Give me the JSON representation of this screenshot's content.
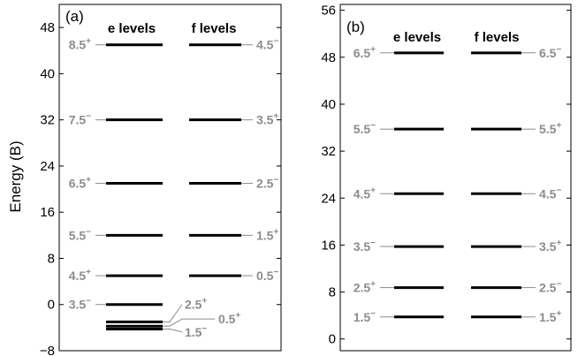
{
  "y_axis_label": "Energy (B)",
  "colors": {
    "level": "#000000",
    "label": "#8c8c8c",
    "frame": "#000000"
  },
  "panels": [
    {
      "tag": "(a)",
      "col_e_title": "e levels",
      "col_f_title": "f levels",
      "ylim": [
        -8,
        52
      ],
      "yticks": [
        {
          "value": -8,
          "label": "−8"
        },
        {
          "value": 0,
          "label": "0"
        },
        {
          "value": 8,
          "label": "8"
        },
        {
          "value": 16,
          "label": "16"
        },
        {
          "value": 24,
          "label": "24"
        },
        {
          "value": 32,
          "label": "32"
        },
        {
          "value": 40,
          "label": "40"
        },
        {
          "value": 48,
          "label": "48"
        }
      ],
      "e_levels": [
        {
          "energy": 45,
          "j": "8.5",
          "parity": "+",
          "label_side": "left"
        },
        {
          "energy": 32,
          "j": "7.5",
          "parity": "−",
          "label_side": "left"
        },
        {
          "energy": 21,
          "j": "6.5",
          "parity": "+",
          "label_side": "left"
        },
        {
          "energy": 12,
          "j": "5.5",
          "parity": "−",
          "label_side": "left"
        },
        {
          "energy": 5,
          "j": "4.5",
          "parity": "+",
          "label_side": "left"
        },
        {
          "energy": 0,
          "j": "3.5",
          "parity": "−",
          "label_side": "left"
        },
        {
          "energy": -3,
          "j": "2.5",
          "parity": "+",
          "label_side": "right",
          "label_energy": 0
        },
        {
          "energy": -3.75,
          "j": "0.5",
          "parity": "+",
          "label_side": "right",
          "label_energy": -2.5
        },
        {
          "energy": -4.25,
          "j": "1.5",
          "parity": "−",
          "label_side": "right",
          "label_energy": -4.75
        }
      ],
      "f_levels": [
        {
          "energy": 45,
          "j": "4.5",
          "parity": "−",
          "label_side": "right"
        },
        {
          "energy": 32,
          "j": "3.5",
          "parity": "+",
          "label_side": "right"
        },
        {
          "energy": 21,
          "j": "2.5",
          "parity": "−",
          "label_side": "right"
        },
        {
          "energy": 12,
          "j": "1.5",
          "parity": "+",
          "label_side": "right"
        },
        {
          "energy": 5,
          "j": "0.5",
          "parity": "−",
          "label_side": "right"
        }
      ]
    },
    {
      "tag": "(b)",
      "col_e_title": "e levels",
      "col_f_title": "f levels",
      "ylim": [
        -2,
        57
      ],
      "yticks": [
        {
          "value": 0,
          "label": "0"
        },
        {
          "value": 8,
          "label": "8"
        },
        {
          "value": 16,
          "label": "16"
        },
        {
          "value": 24,
          "label": "24"
        },
        {
          "value": 32,
          "label": "32"
        },
        {
          "value": 40,
          "label": "40"
        },
        {
          "value": 48,
          "label": "48"
        },
        {
          "value": 56,
          "label": "56"
        }
      ],
      "e_levels": [
        {
          "energy": 48.75,
          "j": "6.5",
          "parity": "+",
          "label_side": "left"
        },
        {
          "energy": 35.75,
          "j": "5.5",
          "parity": "−",
          "label_side": "left"
        },
        {
          "energy": 24.75,
          "j": "4.5",
          "parity": "+",
          "label_side": "left"
        },
        {
          "energy": 15.75,
          "j": "3.5",
          "parity": "−",
          "label_side": "left"
        },
        {
          "energy": 8.75,
          "j": "2.5",
          "parity": "+",
          "label_side": "left"
        },
        {
          "energy": 3.75,
          "j": "1.5",
          "parity": "−",
          "label_side": "left"
        }
      ],
      "f_levels": [
        {
          "energy": 48.75,
          "j": "6.5",
          "parity": "−",
          "label_side": "right"
        },
        {
          "energy": 35.75,
          "j": "5.5",
          "parity": "+",
          "label_side": "right"
        },
        {
          "energy": 24.75,
          "j": "4.5",
          "parity": "−",
          "label_side": "right"
        },
        {
          "energy": 15.75,
          "j": "3.5",
          "parity": "+",
          "label_side": "right"
        },
        {
          "energy": 8.75,
          "j": "2.5",
          "parity": "−",
          "label_side": "right"
        },
        {
          "energy": 3.75,
          "j": "1.5",
          "parity": "+",
          "label_side": "right"
        }
      ]
    }
  ]
}
